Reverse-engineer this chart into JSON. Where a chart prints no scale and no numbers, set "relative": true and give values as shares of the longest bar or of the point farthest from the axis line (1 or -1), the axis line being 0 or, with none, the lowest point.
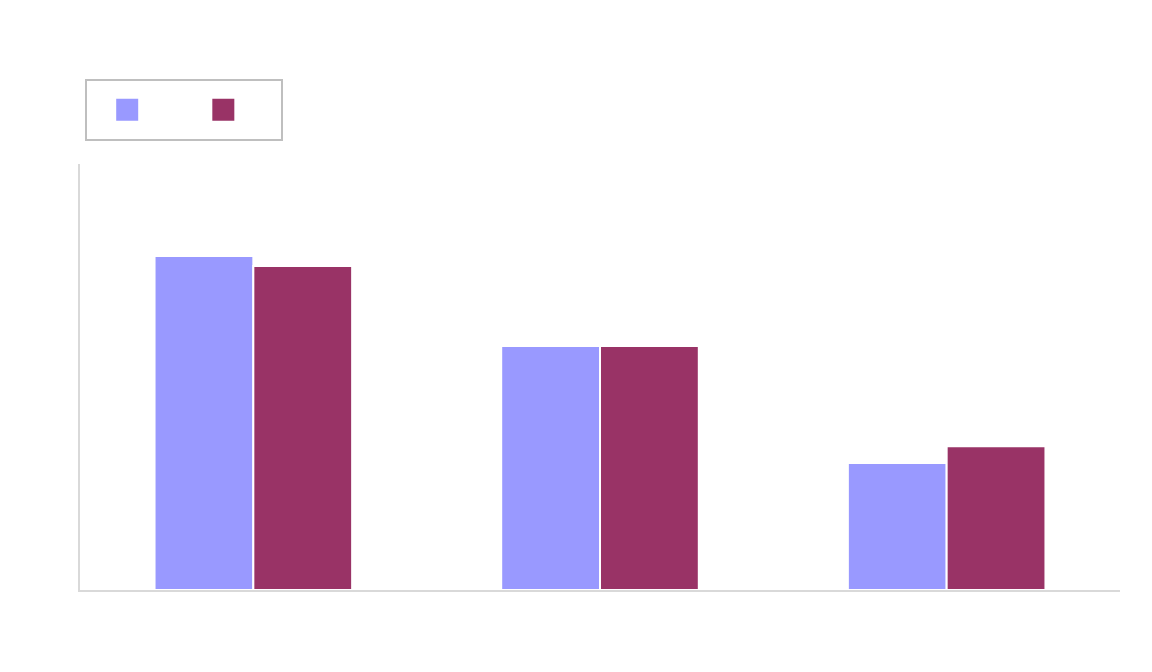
{
  "chart_data": {
    "type": "bar",
    "relative": true,
    "categories": [
      null,
      null,
      null
    ],
    "series": [
      {
        "color": "#9999ff",
        "values": [
          1,
          0.73,
          0.38
        ]
      },
      {
        "color": "#993366",
        "values": [
          0.97,
          0.73,
          0.43
        ]
      }
    ],
    "stacked": false
  }
}
